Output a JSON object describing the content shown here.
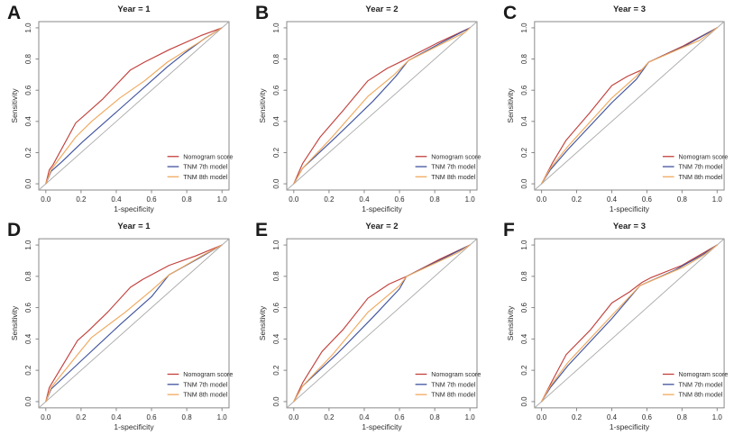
{
  "figure": {
    "background": "#ffffff",
    "panel_letters": [
      "A",
      "B",
      "C",
      "D",
      "E",
      "F"
    ]
  },
  "chart_data": [
    {
      "id": "A",
      "type": "line",
      "title": "Year = 1",
      "xlabel": "1-specificity",
      "ylabel": "Sensitivity",
      "xlim": [
        0,
        1
      ],
      "ylim": [
        0,
        1
      ],
      "grid": "off",
      "legend_position": "bottom-right",
      "xtick_labels": [
        "0.0",
        "0.2",
        "0.4",
        "0.6",
        "0.8",
        "1.0"
      ],
      "ytick_labels": [
        "0.0",
        "0.2",
        "0.4",
        "0.6",
        "0.8",
        "1.0"
      ],
      "tick_values": [
        0,
        0.2,
        0.4,
        0.6,
        0.8,
        1.0
      ],
      "diagonal_color": "#aaaaaa",
      "series": [
        {
          "name": "Nomogram score",
          "color": "#c2413d",
          "points": [
            [
              0,
              0
            ],
            [
              0.02,
              0.09
            ],
            [
              0.04,
              0.12
            ],
            [
              0.17,
              0.39
            ],
            [
              0.22,
              0.44
            ],
            [
              0.32,
              0.54
            ],
            [
              0.48,
              0.73
            ],
            [
              0.56,
              0.78
            ],
            [
              0.7,
              0.86
            ],
            [
              0.88,
              0.95
            ],
            [
              1,
              1
            ]
          ]
        },
        {
          "name": "TNM 7th model",
          "color": "#41549e",
          "points": [
            [
              0,
              0
            ],
            [
              0.03,
              0.08
            ],
            [
              0.09,
              0.14
            ],
            [
              0.21,
              0.27
            ],
            [
              0.42,
              0.48
            ],
            [
              0.6,
              0.66
            ],
            [
              0.69,
              0.75
            ],
            [
              0.79,
              0.84
            ],
            [
              0.9,
              0.93
            ],
            [
              1,
              1
            ]
          ]
        },
        {
          "name": "TNM 8th model",
          "color": "#f0a95e",
          "points": [
            [
              0,
              0
            ],
            [
              0.03,
              0.09
            ],
            [
              0.17,
              0.3
            ],
            [
              0.26,
              0.4
            ],
            [
              0.42,
              0.55
            ],
            [
              0.56,
              0.66
            ],
            [
              0.69,
              0.78
            ],
            [
              0.86,
              0.9
            ],
            [
              1,
              1
            ]
          ]
        }
      ]
    },
    {
      "id": "B",
      "type": "line",
      "title": "Year = 2",
      "xlabel": "1-specificity",
      "ylabel": "Sensitivity",
      "xlim": [
        0,
        1
      ],
      "ylim": [
        0,
        1
      ],
      "grid": "off",
      "legend_position": "bottom-right",
      "xtick_labels": [
        "0.0",
        "0.2",
        "0.4",
        "0.6",
        "0.8",
        "1.0"
      ],
      "ytick_labels": [
        "0.0",
        "0.2",
        "0.4",
        "0.6",
        "0.8",
        "1.0"
      ],
      "tick_values": [
        0,
        0.2,
        0.4,
        0.6,
        0.8,
        1.0
      ],
      "diagonal_color": "#aaaaaa",
      "series": [
        {
          "name": "Nomogram score",
          "color": "#c2413d",
          "points": [
            [
              0,
              0
            ],
            [
              0.05,
              0.13
            ],
            [
              0.15,
              0.3
            ],
            [
              0.28,
              0.47
            ],
            [
              0.42,
              0.66
            ],
            [
              0.53,
              0.74
            ],
            [
              0.62,
              0.79
            ],
            [
              0.81,
              0.9
            ],
            [
              1,
              1
            ]
          ]
        },
        {
          "name": "TNM 7th model",
          "color": "#41549e",
          "points": [
            [
              0,
              0
            ],
            [
              0.05,
              0.1
            ],
            [
              0.24,
              0.3
            ],
            [
              0.45,
              0.53
            ],
            [
              0.58,
              0.69
            ],
            [
              0.65,
              0.79
            ],
            [
              0.83,
              0.9
            ],
            [
              1,
              1
            ]
          ]
        },
        {
          "name": "TNM 8th model",
          "color": "#f0a95e",
          "points": [
            [
              0,
              0
            ],
            [
              0.05,
              0.1
            ],
            [
              0.21,
              0.29
            ],
            [
              0.42,
              0.56
            ],
            [
              0.57,
              0.7
            ],
            [
              0.65,
              0.79
            ],
            [
              0.9,
              0.93
            ],
            [
              0.97,
              0.97
            ],
            [
              1,
              1
            ]
          ]
        }
      ]
    },
    {
      "id": "C",
      "type": "line",
      "title": "Year = 3",
      "xlabel": "1-specificity",
      "ylabel": "Sensitivity",
      "xlim": [
        0,
        1
      ],
      "ylim": [
        0,
        1
      ],
      "grid": "off",
      "legend_position": "bottom-right",
      "xtick_labels": [
        "0.0",
        "0.2",
        "0.4",
        "0.6",
        "0.8",
        "1.0"
      ],
      "ytick_labels": [
        "0.0",
        "0.2",
        "0.4",
        "0.6",
        "0.8",
        "1.0"
      ],
      "tick_values": [
        0,
        0.2,
        0.4,
        0.6,
        0.8,
        1.0
      ],
      "diagonal_color": "#aaaaaa",
      "series": [
        {
          "name": "Nomogram score",
          "color": "#c2413d",
          "points": [
            [
              0,
              0
            ],
            [
              0.06,
              0.13
            ],
            [
              0.14,
              0.28
            ],
            [
              0.27,
              0.45
            ],
            [
              0.4,
              0.63
            ],
            [
              0.49,
              0.69
            ],
            [
              0.57,
              0.73
            ],
            [
              0.61,
              0.78
            ],
            [
              0.8,
              0.88
            ],
            [
              1,
              1
            ]
          ]
        },
        {
          "name": "TNM 7th model",
          "color": "#41549e",
          "points": [
            [
              0,
              0
            ],
            [
              0.05,
              0.09
            ],
            [
              0.15,
              0.22
            ],
            [
              0.4,
              0.52
            ],
            [
              0.54,
              0.67
            ],
            [
              0.61,
              0.78
            ],
            [
              0.81,
              0.88
            ],
            [
              1,
              1
            ]
          ]
        },
        {
          "name": "TNM 8th model",
          "color": "#f0a95e",
          "points": [
            [
              0,
              0
            ],
            [
              0.05,
              0.1
            ],
            [
              0.15,
              0.24
            ],
            [
              0.4,
              0.55
            ],
            [
              0.54,
              0.69
            ],
            [
              0.61,
              0.78
            ],
            [
              0.9,
              0.92
            ],
            [
              1,
              1
            ]
          ]
        }
      ]
    },
    {
      "id": "D",
      "type": "line",
      "title": "Year = 1",
      "xlabel": "1-specificity",
      "ylabel": "Sensitivity",
      "xlim": [
        0,
        1
      ],
      "ylim": [
        0,
        1
      ],
      "grid": "off",
      "legend_position": "bottom-right",
      "xtick_labels": [
        "0.0",
        "0.2",
        "0.4",
        "0.6",
        "0.8",
        "1.0"
      ],
      "ytick_labels": [
        "0.0",
        "0.2",
        "0.4",
        "0.6",
        "0.8",
        "1.0"
      ],
      "tick_values": [
        0,
        0.2,
        0.4,
        0.6,
        0.8,
        1.0
      ],
      "diagonal_color": "#aaaaaa",
      "series": [
        {
          "name": "Nomogram score",
          "color": "#c2413d",
          "points": [
            [
              0,
              0
            ],
            [
              0.02,
              0.09
            ],
            [
              0.18,
              0.39
            ],
            [
              0.24,
              0.45
            ],
            [
              0.35,
              0.57
            ],
            [
              0.48,
              0.73
            ],
            [
              0.55,
              0.78
            ],
            [
              0.7,
              0.87
            ],
            [
              0.85,
              0.93
            ],
            [
              1,
              1
            ]
          ]
        },
        {
          "name": "TNM 7th model",
          "color": "#41549e",
          "points": [
            [
              0,
              0
            ],
            [
              0.03,
              0.08
            ],
            [
              0.2,
              0.26
            ],
            [
              0.42,
              0.49
            ],
            [
              0.6,
              0.67
            ],
            [
              0.7,
              0.81
            ],
            [
              0.86,
              0.91
            ],
            [
              1,
              1
            ]
          ]
        },
        {
          "name": "TNM 8th model",
          "color": "#f0a95e",
          "points": [
            [
              0,
              0
            ],
            [
              0.03,
              0.09
            ],
            [
              0.18,
              0.3
            ],
            [
              0.26,
              0.41
            ],
            [
              0.45,
              0.57
            ],
            [
              0.6,
              0.71
            ],
            [
              0.7,
              0.81
            ],
            [
              0.9,
              0.94
            ],
            [
              1,
              1
            ]
          ]
        }
      ]
    },
    {
      "id": "E",
      "type": "line",
      "title": "Year = 2",
      "xlabel": "1-specificity",
      "ylabel": "Sensitivity",
      "xlim": [
        0,
        1
      ],
      "ylim": [
        0,
        1
      ],
      "grid": "off",
      "legend_position": "bottom-right",
      "xtick_labels": [
        "0.0",
        "0.2",
        "0.4",
        "0.6",
        "0.8",
        "1.0"
      ],
      "ytick_labels": [
        "0.0",
        "0.2",
        "0.4",
        "0.6",
        "0.8",
        "1.0"
      ],
      "tick_values": [
        0,
        0.2,
        0.4,
        0.6,
        0.8,
        1.0
      ],
      "diagonal_color": "#aaaaaa",
      "series": [
        {
          "name": "Nomogram score",
          "color": "#c2413d",
          "points": [
            [
              0,
              0
            ],
            [
              0.05,
              0.12
            ],
            [
              0.16,
              0.32
            ],
            [
              0.28,
              0.46
            ],
            [
              0.42,
              0.66
            ],
            [
              0.54,
              0.75
            ],
            [
              0.64,
              0.8
            ],
            [
              0.83,
              0.91
            ],
            [
              1,
              1
            ]
          ]
        },
        {
          "name": "TNM 7th model",
          "color": "#41549e",
          "points": [
            [
              0,
              0
            ],
            [
              0.05,
              0.1
            ],
            [
              0.25,
              0.31
            ],
            [
              0.45,
              0.54
            ],
            [
              0.6,
              0.72
            ],
            [
              0.64,
              0.8
            ],
            [
              0.86,
              0.92
            ],
            [
              1,
              1
            ]
          ]
        },
        {
          "name": "TNM 8th model",
          "color": "#f0a95e",
          "points": [
            [
              0,
              0
            ],
            [
              0.05,
              0.1
            ],
            [
              0.22,
              0.3
            ],
            [
              0.42,
              0.57
            ],
            [
              0.6,
              0.74
            ],
            [
              0.64,
              0.8
            ],
            [
              0.93,
              0.95
            ],
            [
              1,
              1
            ]
          ]
        }
      ]
    },
    {
      "id": "F",
      "type": "line",
      "title": "Year = 3",
      "xlabel": "1-specificity",
      "ylabel": "Sensitivity",
      "xlim": [
        0,
        1
      ],
      "ylim": [
        0,
        1
      ],
      "grid": "off",
      "legend_position": "bottom-right",
      "xtick_labels": [
        "0.0",
        "0.2",
        "0.4",
        "0.6",
        "0.8",
        "1.0"
      ],
      "ytick_labels": [
        "0.0",
        "0.2",
        "0.4",
        "0.6",
        "0.8",
        "1.0"
      ],
      "tick_values": [
        0,
        0.2,
        0.4,
        0.6,
        0.8,
        1.0
      ],
      "diagonal_color": "#aaaaaa",
      "series": [
        {
          "name": "Nomogram score",
          "color": "#c2413d",
          "points": [
            [
              0,
              0
            ],
            [
              0.05,
              0.11
            ],
            [
              0.14,
              0.3
            ],
            [
              0.28,
              0.46
            ],
            [
              0.4,
              0.63
            ],
            [
              0.5,
              0.7
            ],
            [
              0.57,
              0.76
            ],
            [
              0.62,
              0.79
            ],
            [
              0.8,
              0.87
            ],
            [
              1,
              1
            ]
          ]
        },
        {
          "name": "TNM 7th model",
          "color": "#41549e",
          "points": [
            [
              0,
              0
            ],
            [
              0.05,
              0.09
            ],
            [
              0.15,
              0.23
            ],
            [
              0.4,
              0.53
            ],
            [
              0.56,
              0.74
            ],
            [
              0.76,
              0.84
            ],
            [
              0.92,
              0.94
            ],
            [
              1,
              1
            ]
          ]
        },
        {
          "name": "TNM 8th model",
          "color": "#f0a95e",
          "points": [
            [
              0,
              0
            ],
            [
              0.05,
              0.1
            ],
            [
              0.15,
              0.25
            ],
            [
              0.4,
              0.55
            ],
            [
              0.56,
              0.74
            ],
            [
              0.81,
              0.86
            ],
            [
              0.93,
              0.94
            ],
            [
              1,
              1
            ]
          ]
        }
      ]
    }
  ]
}
